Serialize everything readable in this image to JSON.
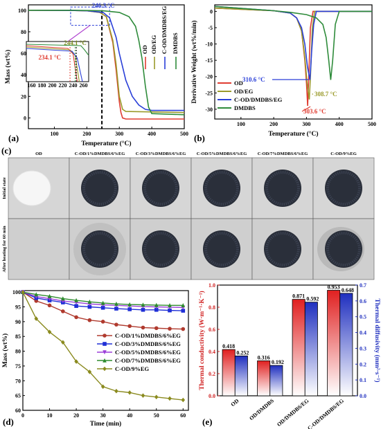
{
  "figure": {
    "panel_labels": [
      "(a)",
      "(b)",
      "(c)",
      "(d)",
      "(e)"
    ]
  },
  "chart_data": [
    {
      "id": "a",
      "type": "line",
      "xlabel": "Temperature (°C)",
      "ylabel": "Mass (wt%)",
      "xlim": [
        20,
        500
      ],
      "ylim": [
        -10,
        105
      ],
      "xticks": [
        100,
        200,
        300,
        400,
        500
      ],
      "yticks": [
        0,
        20,
        40,
        60,
        80,
        100
      ],
      "series": [
        {
          "name": "OD",
          "color": "#e03c31",
          "x": [
            20,
            150,
            200,
            240,
            260,
            280,
            290,
            300,
            305,
            310,
            320,
            500
          ],
          "y": [
            100,
            99.8,
            99.5,
            98,
            94,
            70,
            45,
            15,
            5,
            0,
            -1,
            -1
          ]
        },
        {
          "name": "OD/EG",
          "color": "#9a9a2a",
          "x": [
            20,
            150,
            200,
            240,
            260,
            280,
            290,
            300,
            310,
            320,
            500
          ],
          "y": [
            100,
            99.8,
            99.5,
            98,
            94,
            72,
            50,
            20,
            8,
            6,
            5
          ]
        },
        {
          "name": "C-OD/DMDBS/EG",
          "color": "#2a3fd8",
          "x": [
            20,
            150,
            200,
            250,
            270,
            290,
            300,
            320,
            340,
            360,
            380,
            400,
            500
          ],
          "y": [
            100,
            99.8,
            99.5,
            98,
            93,
            75,
            60,
            35,
            20,
            12,
            8,
            7,
            7
          ]
        },
        {
          "name": "DMDBS",
          "color": "#2e8b3a",
          "x": [
            20,
            150,
            250,
            300,
            330,
            350,
            360,
            370,
            380,
            390,
            400,
            500
          ],
          "y": [
            100,
            100,
            99.5,
            98,
            94,
            85,
            72,
            55,
            30,
            10,
            4,
            3
          ]
        }
      ],
      "annotations": [
        "246.3 °C",
        "244.1 °C",
        "234.1 °C"
      ],
      "inset": {
        "xticks": [
          160,
          180,
          200,
          220,
          240,
          260
        ],
        "xlim": [
          150,
          270
        ]
      }
    },
    {
      "id": "b",
      "type": "line",
      "xlabel": "Temperature (°C)",
      "ylabel": "Derivative Weight (wt%/min)",
      "xlim": [
        20,
        500
      ],
      "ylim": [
        -33,
        2
      ],
      "xticks": [
        100,
        200,
        300,
        400,
        500
      ],
      "yticks": [
        0,
        -5,
        -10,
        -15,
        -20,
        -25,
        -30
      ],
      "series": [
        {
          "name": "OD",
          "color": "#e03c31",
          "x": [
            20,
            200,
            250,
            270,
            285,
            295,
            300,
            303.6,
            307,
            312,
            320,
            500
          ],
          "y": [
            1,
            0.2,
            -0.5,
            -2,
            -6,
            -15,
            -22,
            -29,
            -20,
            -5,
            0,
            0
          ]
        },
        {
          "name": "OD/EG",
          "color": "#9a9a2a",
          "x": [
            20,
            200,
            250,
            270,
            285,
            295,
            302,
            308.7,
            313,
            318,
            325,
            500
          ],
          "y": [
            1,
            0.2,
            -0.5,
            -2,
            -6,
            -14,
            -22,
            -27,
            -18,
            -5,
            0,
            0
          ]
        },
        {
          "name": "C-OD/DMDBS/EG",
          "color": "#2a3fd8",
          "x": [
            20,
            200,
            250,
            270,
            285,
            295,
            303,
            310.6,
            316,
            322,
            330,
            500
          ],
          "y": [
            1.5,
            0.2,
            -0.5,
            -2,
            -5,
            -10,
            -17,
            -21,
            -12,
            -4,
            0,
            0
          ]
        },
        {
          "name": "DMDBS",
          "color": "#2e8b3a",
          "x": [
            20,
            200,
            250,
            300,
            330,
            350,
            360,
            368,
            374,
            380,
            388,
            400,
            500
          ],
          "y": [
            1.5,
            0.2,
            -0.3,
            -1,
            -2,
            -4,
            -8,
            -15,
            -21,
            -15,
            -4,
            0,
            0
          ]
        }
      ],
      "annotations": [
        "310.6 °C",
        "308.7 °C",
        "303.6 °C"
      ]
    },
    {
      "id": "d",
      "type": "line",
      "xlabel": "Time (min)",
      "ylabel": "Mass (wt%)",
      "xlim": [
        0,
        62
      ],
      "ylim": [
        60,
        100.5
      ],
      "xticks": [
        0,
        10,
        20,
        30,
        40,
        50,
        60
      ],
      "yticks": [
        60,
        65,
        70,
        75,
        80,
        85,
        90,
        95,
        100
      ],
      "series": [
        {
          "name": "C-OD/1%DMDBS/6%EG",
          "color": "#b03a2e",
          "marker": "circle",
          "x": [
            0,
            5,
            10,
            15,
            20,
            25,
            30,
            35,
            40,
            45,
            50,
            55,
            60
          ],
          "y": [
            100,
            97,
            95.5,
            93.5,
            91.5,
            90.5,
            90,
            89,
            88.5,
            88,
            87.8,
            87.6,
            87.5
          ]
        },
        {
          "name": "C-OD/3%DMDBS/6%EG",
          "color": "#1f2fd6",
          "marker": "square",
          "x": [
            0,
            5,
            10,
            15,
            20,
            25,
            30,
            35,
            40,
            45,
            50,
            55,
            60
          ],
          "y": [
            100,
            98,
            97.2,
            96.5,
            95.3,
            95,
            94.7,
            94.4,
            94.2,
            94,
            94,
            93.8,
            93.7
          ]
        },
        {
          "name": "C-OD/5%DMDBS/6%EG",
          "color": "#9b3fd9",
          "marker": "triangle-down",
          "x": [
            0,
            5,
            10,
            15,
            20,
            25,
            30,
            35,
            40,
            45,
            50,
            55,
            60
          ],
          "y": [
            100,
            98.5,
            97.8,
            97,
            96.5,
            96,
            95.7,
            95.5,
            95.3,
            95.1,
            95,
            94.9,
            94.8
          ]
        },
        {
          "name": "C-OD/7%DMDBS/6%EG",
          "color": "#2e8b2e",
          "marker": "triangle-up",
          "x": [
            0,
            5,
            10,
            15,
            20,
            25,
            30,
            35,
            40,
            45,
            50,
            55,
            60
          ],
          "y": [
            100,
            99.2,
            98.6,
            97.8,
            97.2,
            96.7,
            96.3,
            96,
            95.8,
            95.7,
            95.6,
            95.5,
            95.5
          ]
        },
        {
          "name": "C-OD/9%EG",
          "color": "#8a8a1e",
          "marker": "diamond",
          "x": [
            0,
            5,
            10,
            15,
            20,
            25,
            30,
            35,
            40,
            45,
            50,
            55,
            60
          ],
          "y": [
            100,
            91,
            86.5,
            83,
            76.5,
            73,
            68,
            66.5,
            66,
            65,
            64.5,
            64,
            63.5
          ]
        }
      ]
    },
    {
      "id": "e",
      "type": "bar",
      "categories": [
        "OD",
        "OD/DMDBS",
        "OD/DMDBS/EG",
        "C-OD/DMDBS/EG"
      ],
      "series": [
        {
          "name": "Thermal conductivity",
          "color": "#e02020",
          "values": [
            0.418,
            0.316,
            0.871,
            0.953
          ],
          "labels": [
            "0.418",
            "0.316",
            "0.871",
            "0.953"
          ]
        },
        {
          "name": "Thermal diffusivity",
          "color": "#1f2fbf",
          "values": [
            0.252,
            0.192,
            0.592,
            0.648
          ],
          "labels": [
            "0.252",
            "0.192",
            "0.592",
            "0.648"
          ]
        }
      ],
      "ylabel_left": "Thermal conductivity (W·m⁻¹·K⁻¹)",
      "ylabel_right": "Thermal diffusivity (mm²·s⁻¹)",
      "ylim_left": [
        0,
        1.0
      ],
      "ylim_right": [
        0,
        0.7
      ],
      "yticks_left": [
        0.0,
        0.2,
        0.4,
        0.6,
        0.8,
        1.0
      ],
      "yticks_right": [
        0.0,
        0.1,
        0.2,
        0.3,
        0.4,
        0.5,
        0.6,
        0.7
      ]
    }
  ],
  "photo_panel": {
    "column_labels": [
      "OD",
      "C-OD/1%DMDBS/6%EG",
      "C-OD/3%DMDBS/6%EG",
      "C-OD/5%DMDBS/6%EG",
      "C-OD/7%DMDBS/6%EG",
      "C-OD/9%EG"
    ],
    "row_labels": [
      "Initial state",
      "After heating for 60 min"
    ]
  }
}
